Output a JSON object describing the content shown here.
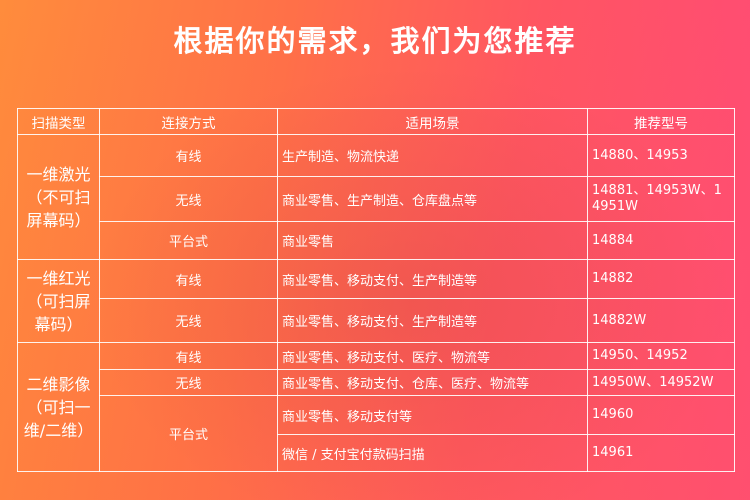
{
  "title": "根据你的需求，我们为您推荐",
  "headers": [
    "扫描类型",
    "连接方式",
    "适用场景",
    "推荐型号"
  ],
  "groups": [
    {
      "type": "一维激光（不可扫屏幕码）",
      "rows": [
        {
          "connection": "有线",
          "scene": "生产制造、物流快递",
          "model": "14880、14953"
        },
        {
          "connection": "无线",
          "scene": "商业零售、生产制造、仓库盘点等",
          "model": "14881、14953W、14951W"
        },
        {
          "connection": "平台式",
          "scene": "商业零售",
          "model": "14884"
        }
      ]
    },
    {
      "type": "一维红光（可扫屏幕码）",
      "rows": [
        {
          "connection": "有线",
          "scene": "商业零售、移动支付、生产制造等",
          "model": "14882"
        },
        {
          "connection": "无线",
          "scene": "商业零售、移动支付、生产制造等",
          "model": "14882W"
        }
      ]
    },
    {
      "type": "二维影像（可扫一维/二维）",
      "rows": [
        {
          "connection": "有线",
          "scene": "商业零售、移动支付、医疗、物流等",
          "model": "14950、14952"
        },
        {
          "connection": "无线",
          "scene": "商业零售、移动支付、仓库、医疗、物流等",
          "model": "14950W、14952W"
        },
        {
          "connection": "平台式",
          "scene": "商业零售、移动支付等",
          "model": "14960"
        },
        {
          "scene": "微信 / 支付宝付款码扫描",
          "model": "14961"
        }
      ]
    }
  ],
  "colors": {
    "gradient_left": "#ff8c3c",
    "gradient_right": "#ff4a78",
    "text": "#ffffff"
  }
}
